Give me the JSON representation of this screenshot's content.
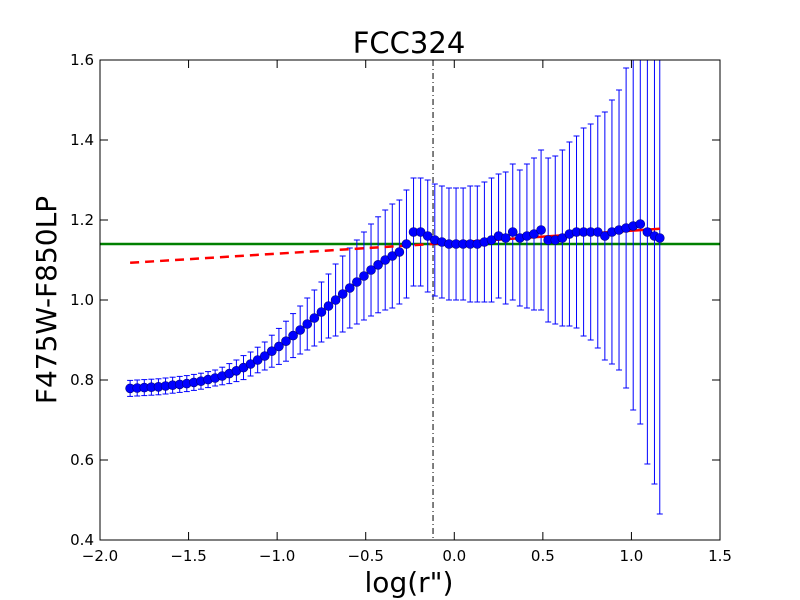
{
  "chart_data": {
    "type": "scatter",
    "title": "FCC324",
    "xlabel": "log(r\")",
    "ylabel": "F475W-F850LP",
    "xlim": [
      -2.0,
      1.5
    ],
    "ylim": [
      0.4,
      1.6
    ],
    "xticks": [
      -2.0,
      -1.5,
      -1.0,
      -0.5,
      0.0,
      0.5,
      1.0,
      1.5
    ],
    "xtick_labels": [
      "−2.0",
      "−1.5",
      "−1.0",
      "−0.5",
      "0.0",
      "0.5",
      "1.0",
      "1.5"
    ],
    "yticks": [
      0.4,
      0.6,
      0.8,
      1.0,
      1.2,
      1.4,
      1.6
    ],
    "ytick_labels": [
      "0.4",
      "0.6",
      "0.8",
      "1.0",
      "1.2",
      "1.4",
      "1.6"
    ],
    "grid": false,
    "colors": {
      "points": "#0000ff",
      "fit": "#ff0000",
      "mean_line": "#008000",
      "vline": "#000000"
    },
    "series": [
      {
        "marker": "circle",
        "x": [
          -1.83,
          -1.79,
          -1.75,
          -1.71,
          -1.67,
          -1.63,
          -1.59,
          -1.55,
          -1.51,
          -1.47,
          -1.43,
          -1.39,
          -1.35,
          -1.31,
          -1.27,
          -1.23,
          -1.19,
          -1.15,
          -1.11,
          -1.07,
          -1.03,
          -0.99,
          -0.95,
          -0.91,
          -0.87,
          -0.83,
          -0.79,
          -0.75,
          -0.71,
          -0.67,
          -0.63,
          -0.59,
          -0.55,
          -0.51,
          -0.47,
          -0.43,
          -0.39,
          -0.35,
          -0.31,
          -0.27,
          -0.23,
          -0.19,
          -0.15,
          -0.11,
          -0.07,
          -0.03,
          0.01,
          0.05,
          0.09,
          0.13,
          0.17,
          0.21,
          0.25,
          0.29,
          0.33,
          0.37,
          0.41,
          0.45,
          0.49,
          0.53,
          0.57,
          0.61,
          0.65,
          0.69,
          0.73,
          0.77,
          0.81,
          0.85,
          0.89,
          0.93,
          0.97,
          1.01,
          1.05,
          1.09,
          1.13,
          1.16
        ],
        "y": [
          0.779,
          0.78,
          0.781,
          0.782,
          0.783,
          0.785,
          0.787,
          0.789,
          0.791,
          0.794,
          0.797,
          0.801,
          0.805,
          0.81,
          0.816,
          0.823,
          0.831,
          0.84,
          0.85,
          0.86,
          0.872,
          0.884,
          0.897,
          0.911,
          0.925,
          0.94,
          0.955,
          0.97,
          0.985,
          1.0,
          1.015,
          1.03,
          1.045,
          1.06,
          1.075,
          1.088,
          1.1,
          1.11,
          1.12,
          1.14,
          1.17,
          1.17,
          1.16,
          1.15,
          1.145,
          1.14,
          1.14,
          1.14,
          1.14,
          1.14,
          1.145,
          1.15,
          1.16,
          1.155,
          1.17,
          1.155,
          1.16,
          1.165,
          1.175,
          1.15,
          1.15,
          1.155,
          1.165,
          1.17,
          1.17,
          1.17,
          1.17,
          1.16,
          1.17,
          1.175,
          1.18,
          1.185,
          1.19,
          1.17,
          1.16,
          1.155
        ],
        "yerr": [
          0.02,
          0.02,
          0.02,
          0.02,
          0.02,
          0.02,
          0.02,
          0.02,
          0.02,
          0.02,
          0.02,
          0.02,
          0.02,
          0.022,
          0.025,
          0.027,
          0.03,
          0.03,
          0.032,
          0.035,
          0.04,
          0.045,
          0.05,
          0.055,
          0.06,
          0.065,
          0.07,
          0.075,
          0.08,
          0.09,
          0.095,
          0.1,
          0.105,
          0.11,
          0.115,
          0.12,
          0.125,
          0.13,
          0.13,
          0.135,
          0.135,
          0.135,
          0.14,
          0.14,
          0.14,
          0.14,
          0.14,
          0.14,
          0.145,
          0.145,
          0.15,
          0.155,
          0.155,
          0.165,
          0.17,
          0.17,
          0.18,
          0.19,
          0.2,
          0.205,
          0.21,
          0.22,
          0.23,
          0.24,
          0.26,
          0.27,
          0.29,
          0.31,
          0.33,
          0.35,
          0.4,
          0.46,
          0.5,
          0.58,
          0.62,
          0.69
        ]
      }
    ],
    "fit_segments": [
      {
        "style": "dashed",
        "x": [
          -1.83,
          -0.05
        ],
        "y": [
          1.093,
          1.142
        ]
      },
      {
        "style": "solid",
        "x": [
          -0.05,
          1.16
        ],
        "y": [
          1.142,
          1.178
        ]
      }
    ],
    "hline_y": 1.14,
    "vline_x": -0.12
  }
}
